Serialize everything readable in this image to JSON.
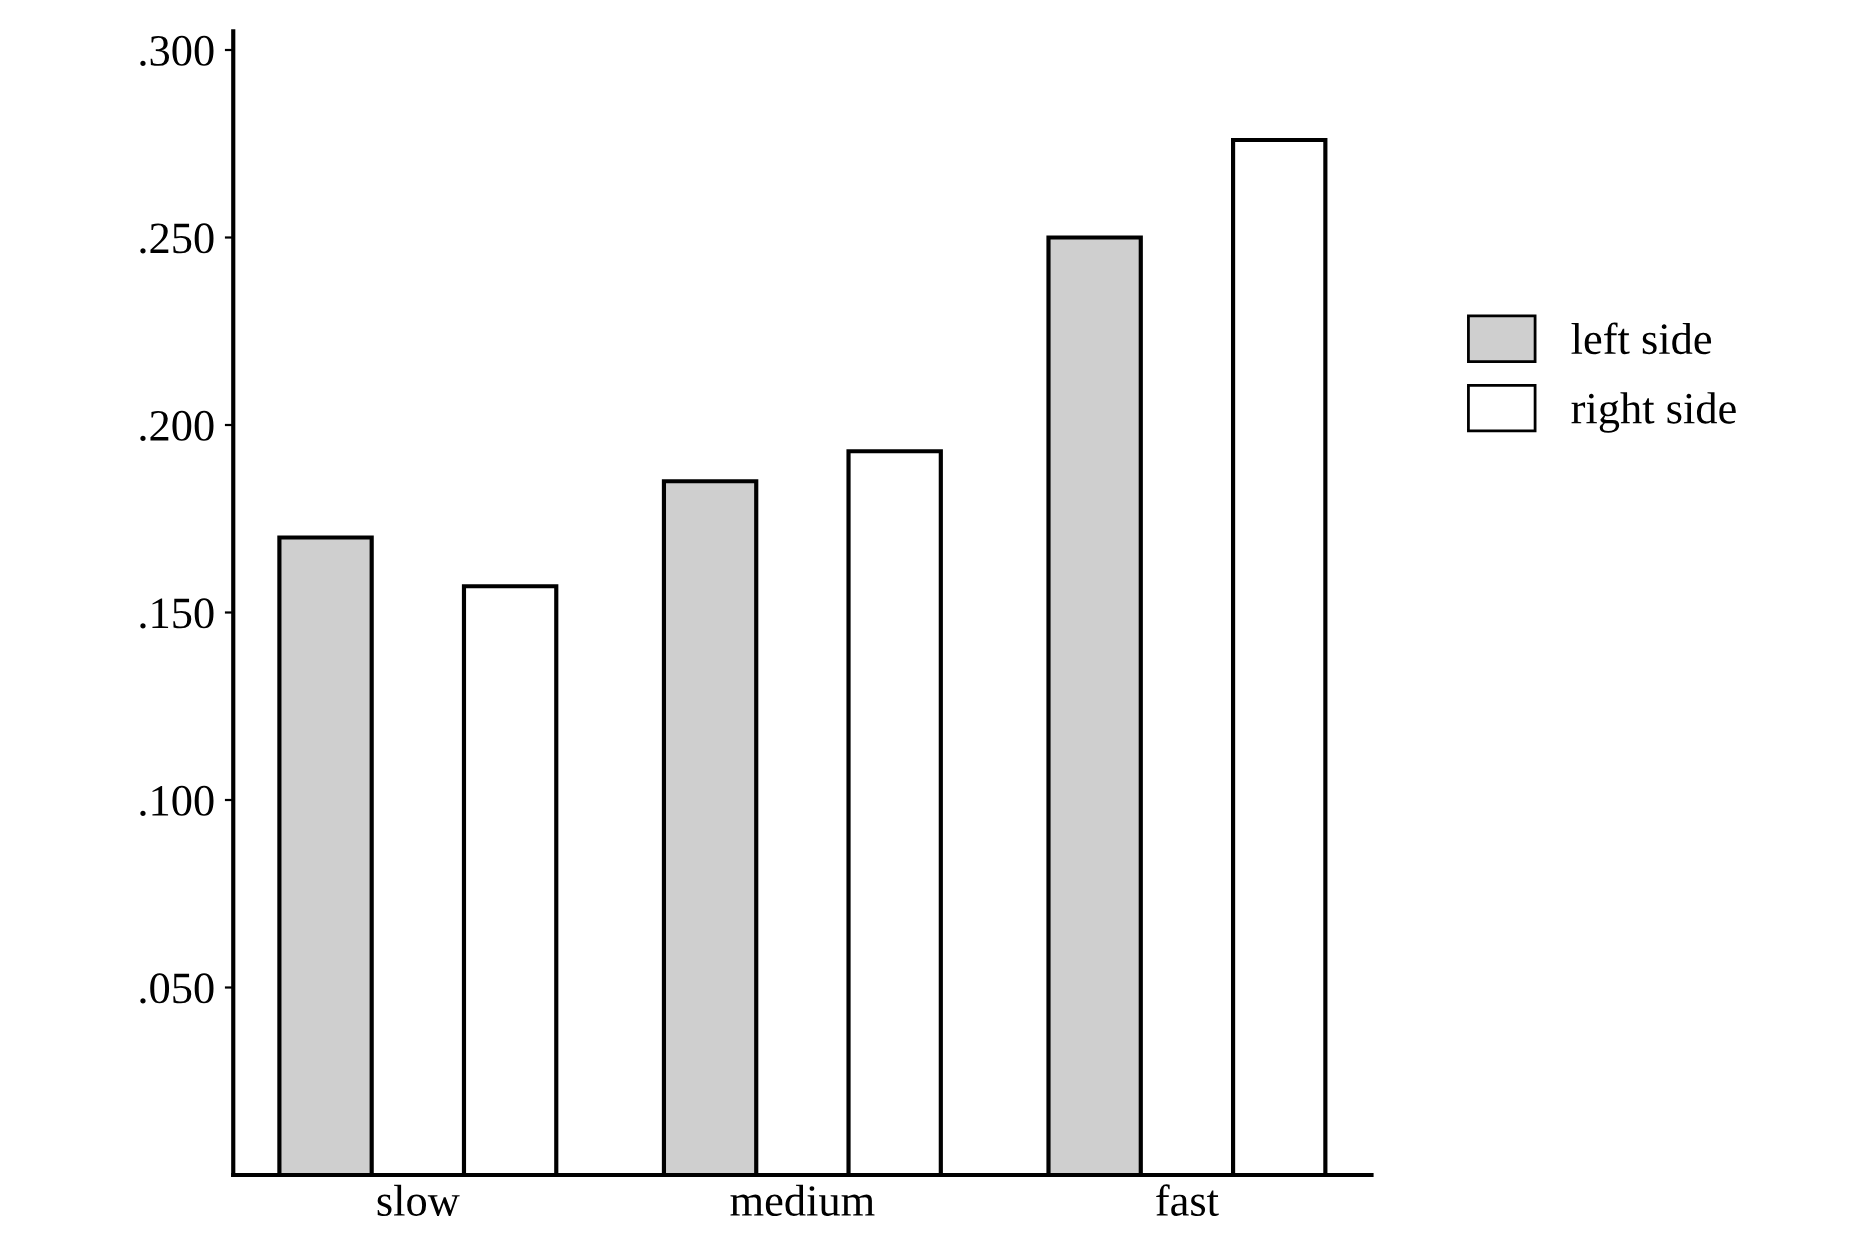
{
  "chart_data": {
    "type": "bar",
    "categories": [
      "slow",
      "medium",
      "fast"
    ],
    "series": [
      {
        "name": "left side",
        "color": "#cfcfcf",
        "values": [
          0.17,
          0.185,
          0.25
        ]
      },
      {
        "name": "right side",
        "color": "#ffffff",
        "values": [
          0.157,
          0.193,
          0.276
        ]
      }
    ],
    "ylim": [
      0,
      0.305
    ],
    "yticks": [
      {
        "value": 0.05,
        "label": ".050"
      },
      {
        "value": 0.1,
        "label": ".100"
      },
      {
        "value": 0.15,
        "label": ".150"
      },
      {
        "value": 0.2,
        "label": ".200"
      },
      {
        "value": 0.25,
        "label": ".250"
      },
      {
        "value": 0.3,
        "label": ".300"
      }
    ],
    "grid": false,
    "legend": "right"
  }
}
